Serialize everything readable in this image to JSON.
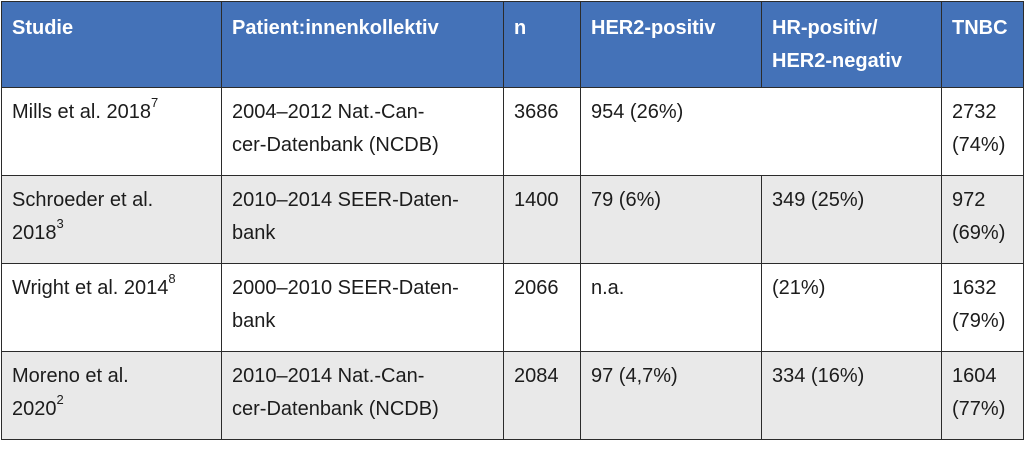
{
  "headers": [
    "Studie",
    "Patient:innenkollektiv",
    "n",
    "HER2-positiv",
    "HR-positiv/\nHER2-negativ",
    "TNBC"
  ],
  "rows": [
    {
      "study": "Mills et al. 2018",
      "ref": "7",
      "cohort": "2004–2012 Nat.-Can-\ncer-Datenbank (NCDB)",
      "n": "3686",
      "her2_positive": "954 (26%)",
      "hr_positive": "",
      "tnbc": "2732\n(74%)"
    },
    {
      "study": "Schroeder et al.\n2018",
      "ref": "3",
      "cohort": "2010–2014 SEER-Daten-\nbank",
      "n": "1400",
      "her2_positive": "79 (6%)",
      "hr_positive": "349 (25%)",
      "tnbc": "972\n(69%)"
    },
    {
      "study": "Wright et al. 2014",
      "ref": "8",
      "cohort": "2000–2010 SEER-Daten-\nbank",
      "n": "2066",
      "her2_positive": "n.a.",
      "hr_positive": "(21%)",
      "tnbc": "1632\n(79%)"
    },
    {
      "study": "Moreno et al.\n2020",
      "ref": "2",
      "cohort": "2010–2014 Nat.-Can-\ncer-Datenbank (NCDB)",
      "n": "2084",
      "her2_positive": "97 (4,7%)",
      "hr_positive": "334 (16%)",
      "tnbc": "1604\n(77%)"
    }
  ],
  "colors": {
    "header_bg": "#4472b8",
    "header_text": "#ffffff",
    "row_alt_bg": "#e9e9e9",
    "row_bg": "#ffffff",
    "border": "#2b2b2b"
  }
}
